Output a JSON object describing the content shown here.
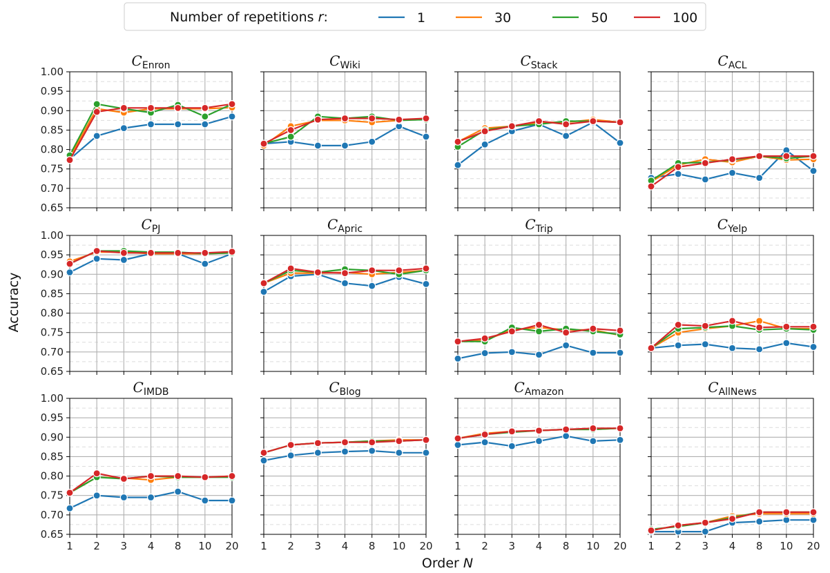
{
  "chart_data": {
    "type": "line",
    "legend": {
      "title": "Number of repetitions r:",
      "title_prefix": "Number of repetitions ",
      "title_var": "r",
      "title_suffix": ":",
      "placement": "top-center"
    },
    "xlabel_prefix": "Order ",
    "xlabel_var": "N",
    "ylabel": "Accuracy",
    "x_ticks": [
      "1",
      "2",
      "3",
      "4",
      "8",
      "10",
      "20"
    ],
    "ylim": [
      0.65,
      1.0
    ],
    "y_ticks": [
      "0.65",
      "0.70",
      "0.75",
      "0.80",
      "0.85",
      "0.90",
      "0.95",
      "1.00"
    ],
    "grid": true,
    "series_styles": [
      {
        "name": "1",
        "color": "#1f77b4"
      },
      {
        "name": "30",
        "color": "#ff7f0e"
      },
      {
        "name": "50",
        "color": "#2ca02c"
      },
      {
        "name": "100",
        "color": "#d62728"
      }
    ],
    "panels": [
      {
        "title_main": "C",
        "title_sub": "Enron",
        "series": [
          {
            "name": "1",
            "values": [
              0.775,
              0.835,
              0.855,
              0.865,
              0.865,
              0.865,
              0.885
            ]
          },
          {
            "name": "30",
            "values": [
              0.78,
              0.905,
              0.895,
              0.905,
              0.905,
              0.905,
              0.908
            ]
          },
          {
            "name": "50",
            "values": [
              0.785,
              0.917,
              0.905,
              0.895,
              0.915,
              0.885,
              0.917
            ]
          },
          {
            "name": "100",
            "values": [
              0.773,
              0.897,
              0.907,
              0.907,
              0.907,
              0.907,
              0.917
            ]
          }
        ]
      },
      {
        "title_main": "C",
        "title_sub": "Wiki",
        "series": [
          {
            "name": "1",
            "values": [
              0.815,
              0.82,
              0.81,
              0.81,
              0.82,
              0.86,
              0.833
            ]
          },
          {
            "name": "30",
            "values": [
              0.81,
              0.86,
              0.875,
              0.875,
              0.87,
              0.875,
              0.88
            ]
          },
          {
            "name": "50",
            "values": [
              0.815,
              0.833,
              0.885,
              0.88,
              0.885,
              0.875,
              0.877
            ]
          },
          {
            "name": "100",
            "values": [
              0.815,
              0.85,
              0.877,
              0.88,
              0.88,
              0.877,
              0.88
            ]
          }
        ]
      },
      {
        "title_main": "C",
        "title_sub": "Stack",
        "series": [
          {
            "name": "1",
            "values": [
              0.76,
              0.813,
              0.847,
              0.865,
              0.835,
              0.87,
              0.817
            ]
          },
          {
            "name": "30",
            "values": [
              0.82,
              0.855,
              0.86,
              0.87,
              0.87,
              0.877,
              0.87
            ]
          },
          {
            "name": "50",
            "values": [
              0.807,
              0.85,
              0.86,
              0.865,
              0.873,
              0.873,
              0.87
            ]
          },
          {
            "name": "100",
            "values": [
              0.82,
              0.847,
              0.86,
              0.873,
              0.865,
              0.873,
              0.87
            ]
          }
        ]
      },
      {
        "title_main": "C",
        "title_sub": "ACL",
        "series": [
          {
            "name": "1",
            "values": [
              0.727,
              0.737,
              0.723,
              0.74,
              0.727,
              0.798,
              0.745
            ]
          },
          {
            "name": "30",
            "values": [
              0.717,
              0.76,
              0.775,
              0.767,
              0.783,
              0.773,
              0.775
            ]
          },
          {
            "name": "50",
            "values": [
              0.72,
              0.765,
              0.767,
              0.773,
              0.783,
              0.777,
              0.783
            ]
          },
          {
            "name": "100",
            "values": [
              0.705,
              0.755,
              0.765,
              0.775,
              0.783,
              0.783,
              0.783
            ]
          }
        ]
      },
      {
        "title_main": "C",
        "title_sub": "PJ",
        "series": [
          {
            "name": "1",
            "values": [
              0.905,
              0.94,
              0.937,
              0.953,
              0.953,
              0.927,
              0.953
            ]
          },
          {
            "name": "30",
            "values": [
              0.933,
              0.957,
              0.957,
              0.953,
              0.953,
              0.953,
              0.955
            ]
          },
          {
            "name": "50",
            "values": [
              0.927,
              0.96,
              0.96,
              0.957,
              0.957,
              0.953,
              0.955
            ]
          },
          {
            "name": "100",
            "values": [
              0.927,
              0.96,
              0.955,
              0.955,
              0.955,
              0.955,
              0.958
            ]
          }
        ]
      },
      {
        "title_main": "C",
        "title_sub": "Apric",
        "series": [
          {
            "name": "1",
            "values": [
              0.855,
              0.895,
              0.9,
              0.877,
              0.87,
              0.893,
              0.875
            ]
          },
          {
            "name": "30",
            "values": [
              0.877,
              0.903,
              0.903,
              0.905,
              0.9,
              0.905,
              0.91
            ]
          },
          {
            "name": "50",
            "values": [
              0.877,
              0.91,
              0.905,
              0.913,
              0.91,
              0.9,
              0.91
            ]
          },
          {
            "name": "100",
            "values": [
              0.877,
              0.915,
              0.905,
              0.903,
              0.91,
              0.91,
              0.915
            ]
          }
        ]
      },
      {
        "title_main": "C",
        "title_sub": "Trip",
        "series": [
          {
            "name": "1",
            "values": [
              0.683,
              0.697,
              0.7,
              0.693,
              0.717,
              0.698,
              0.698
            ]
          },
          {
            "name": "30",
            "values": [
              0.727,
              0.73,
              0.757,
              0.763,
              0.757,
              0.757,
              0.743
            ]
          },
          {
            "name": "50",
            "values": [
              0.727,
              0.727,
              0.763,
              0.753,
              0.76,
              0.753,
              0.745
            ]
          },
          {
            "name": "100",
            "values": [
              0.727,
              0.735,
              0.753,
              0.77,
              0.75,
              0.76,
              0.755
            ]
          }
        ]
      },
      {
        "title_main": "C",
        "title_sub": "Yelp",
        "series": [
          {
            "name": "1",
            "values": [
              0.71,
              0.717,
              0.72,
              0.71,
              0.707,
              0.723,
              0.713
            ]
          },
          {
            "name": "30",
            "values": [
              0.71,
              0.75,
              0.76,
              0.767,
              0.78,
              0.76,
              0.76
            ]
          },
          {
            "name": "50",
            "values": [
              0.71,
              0.76,
              0.763,
              0.767,
              0.757,
              0.76,
              0.757
            ]
          },
          {
            "name": "100",
            "values": [
              0.71,
              0.77,
              0.767,
              0.78,
              0.763,
              0.765,
              0.765
            ]
          }
        ]
      },
      {
        "title_main": "C",
        "title_sub": "IMDB",
        "series": [
          {
            "name": "1",
            "values": [
              0.717,
              0.75,
              0.745,
              0.745,
              0.76,
              0.737,
              0.737
            ]
          },
          {
            "name": "30",
            "values": [
              0.757,
              0.797,
              0.795,
              0.79,
              0.797,
              0.797,
              0.8
            ]
          },
          {
            "name": "50",
            "values": [
              0.757,
              0.797,
              0.793,
              0.8,
              0.797,
              0.797,
              0.797
            ]
          },
          {
            "name": "100",
            "values": [
              0.757,
              0.807,
              0.793,
              0.8,
              0.8,
              0.797,
              0.8
            ]
          }
        ]
      },
      {
        "title_main": "C",
        "title_sub": "Blog",
        "series": [
          {
            "name": "1",
            "values": [
              0.84,
              0.853,
              0.86,
              0.863,
              0.865,
              0.86,
              0.86
            ]
          },
          {
            "name": "30",
            "values": [
              0.86,
              0.88,
              0.885,
              0.887,
              0.89,
              0.893,
              0.893
            ]
          },
          {
            "name": "50",
            "values": [
              0.86,
              0.88,
              0.885,
              0.887,
              0.89,
              0.89,
              0.893
            ]
          },
          {
            "name": "100",
            "values": [
              0.86,
              0.88,
              0.885,
              0.887,
              0.887,
              0.89,
              0.893
            ]
          }
        ]
      },
      {
        "title_main": "C",
        "title_sub": "Amazon",
        "series": [
          {
            "name": "1",
            "values": [
              0.88,
              0.887,
              0.877,
              0.89,
              0.903,
              0.89,
              0.893
            ]
          },
          {
            "name": "30",
            "values": [
              0.897,
              0.91,
              0.915,
              0.917,
              0.92,
              0.92,
              0.923
            ]
          },
          {
            "name": "50",
            "values": [
              0.897,
              0.907,
              0.913,
              0.917,
              0.92,
              0.92,
              0.923
            ]
          },
          {
            "name": "100",
            "values": [
              0.897,
              0.907,
              0.915,
              0.917,
              0.92,
              0.923,
              0.923
            ]
          }
        ]
      },
      {
        "title_main": "C",
        "title_sub": "AllNews",
        "series": [
          {
            "name": "1",
            "values": [
              0.657,
              0.657,
              0.657,
              0.68,
              0.683,
              0.687,
              0.687
            ]
          },
          {
            "name": "30",
            "values": [
              0.66,
              0.673,
              0.68,
              0.697,
              0.703,
              0.703,
              0.703
            ]
          },
          {
            "name": "50",
            "values": [
              0.663,
              0.67,
              0.68,
              0.693,
              0.707,
              0.707,
              0.707
            ]
          },
          {
            "name": "100",
            "values": [
              0.66,
              0.673,
              0.68,
              0.69,
              0.707,
              0.707,
              0.707
            ]
          }
        ]
      }
    ]
  }
}
